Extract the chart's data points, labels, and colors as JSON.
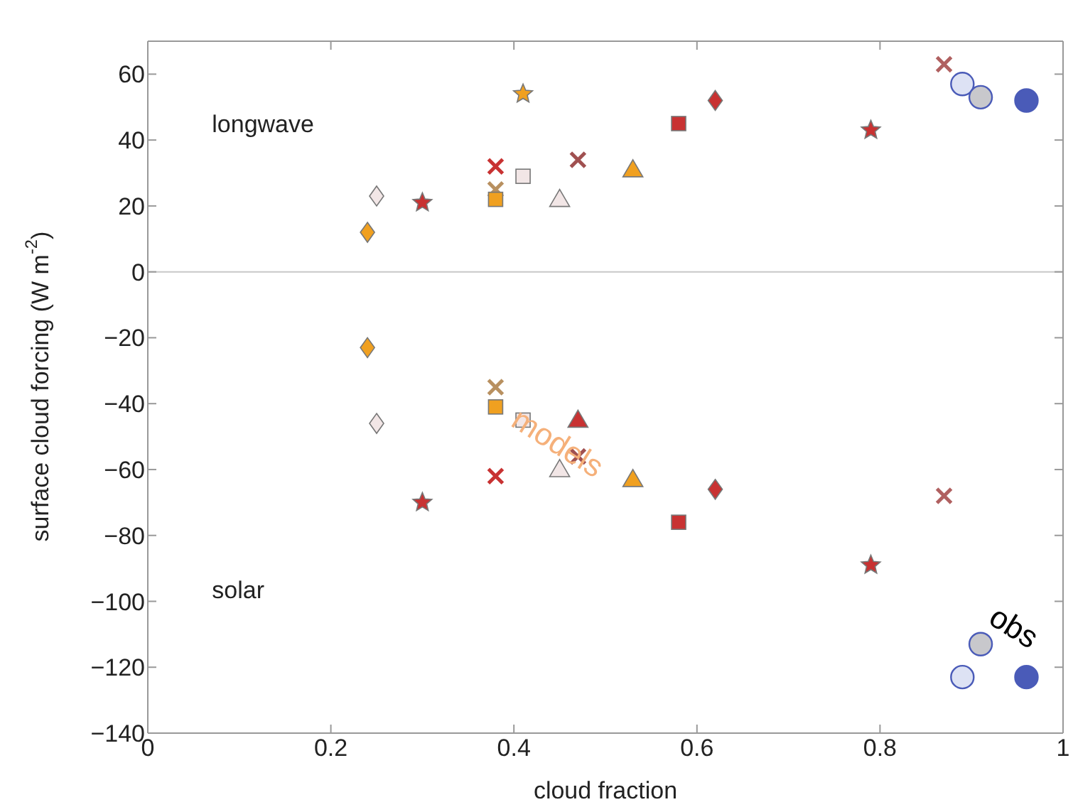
{
  "chart_data": {
    "type": "scatter",
    "xlabel": "cloud fraction",
    "ylabel": "surface cloud forcing (W m$^{-2}$)",
    "xlim": [
      0,
      1
    ],
    "xticks": [
      0,
      0.2,
      0.4,
      0.6,
      0.8,
      1
    ],
    "ylim": [
      -140,
      70
    ],
    "yticks": [
      -140,
      -120,
      -100,
      -80,
      -60,
      -40,
      -20,
      0,
      20,
      40,
      60
    ],
    "legend": false,
    "ref_lines": [
      {
        "axis": "y",
        "value": 0,
        "color": "#c8c8c8"
      }
    ],
    "annotations": [
      "longwave",
      "solar",
      "models",
      "obs"
    ],
    "series": [
      {
        "marker": "diamond",
        "color": "#f2e6e6",
        "x": [
          0.25,
          0.25
        ],
        "values": [
          23,
          -46
        ]
      },
      {
        "marker": "diamond",
        "color": "#f0a020",
        "x": [
          0.24,
          0.24
        ],
        "values": [
          12,
          -23
        ]
      },
      {
        "marker": "star",
        "color": "#c83232",
        "x": [
          0.3,
          0.3
        ],
        "values": [
          21,
          -70
        ]
      },
      {
        "marker": "star",
        "color": "#f0a020",
        "x": [
          0.41
        ],
        "values": [
          54
        ]
      },
      {
        "marker": "cross",
        "color": "#c83232",
        "x": [
          0.38,
          0.38
        ],
        "values": [
          32,
          -62
        ]
      },
      {
        "marker": "cross",
        "color": "#b89060",
        "x": [
          0.38,
          0.38
        ],
        "values": [
          25,
          -35
        ]
      },
      {
        "marker": "square",
        "color": "#f0a020",
        "x": [
          0.38,
          0.38
        ],
        "values": [
          22,
          -41
        ]
      },
      {
        "marker": "square",
        "color": "#f2e6e6",
        "x": [
          0.41,
          0.41
        ],
        "values": [
          29,
          -45
        ]
      },
      {
        "marker": "cross",
        "color": "#a05050",
        "x": [
          0.47,
          0.47
        ],
        "values": [
          34,
          -56
        ]
      },
      {
        "marker": "triangle",
        "color": "#f2e6e6",
        "x": [
          0.45,
          0.45
        ],
        "values": [
          22,
          -60
        ]
      },
      {
        "marker": "triangle",
        "color": "#c83232",
        "x": [
          0.47
        ],
        "values": [
          -45
        ]
      },
      {
        "marker": "triangle",
        "color": "#f0a020",
        "x": [
          0.53,
          0.53
        ],
        "values": [
          31,
          -63
        ]
      },
      {
        "marker": "square",
        "color": "#c83232",
        "x": [
          0.58,
          0.58
        ],
        "values": [
          45,
          -76
        ]
      },
      {
        "marker": "diamond",
        "color": "#c83232",
        "x": [
          0.62,
          0.62
        ],
        "values": [
          52,
          -66
        ]
      },
      {
        "marker": "star",
        "color": "#c83232",
        "x": [
          0.79,
          0.79
        ],
        "values": [
          43,
          -89
        ]
      },
      {
        "marker": "cross",
        "color": "#b06060",
        "x": [
          0.87,
          0.87
        ],
        "values": [
          63,
          -68
        ]
      },
      {
        "marker": "circle",
        "color": "#dde2f4",
        "x": [
          0.89,
          0.89
        ],
        "values": [
          57,
          -123
        ]
      },
      {
        "marker": "circle",
        "color": "#c8c8cc",
        "x": [
          0.91,
          0.91
        ],
        "values": [
          53,
          -113
        ]
      },
      {
        "marker": "circle",
        "color": "#4a5bb8",
        "x": [
          0.96,
          0.96
        ],
        "values": [
          52,
          -123
        ]
      }
    ]
  }
}
